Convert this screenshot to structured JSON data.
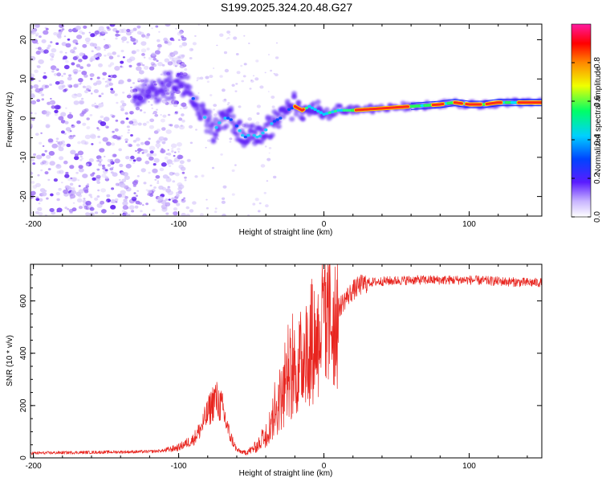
{
  "figure": {
    "title": "S199.2025.324.20.48.G27"
  },
  "chart_data": [
    {
      "type": "heatmap",
      "name": "spectrogram",
      "xlabel": "Height of straight line (km)",
      "ylabel": "Frequency (Hz)",
      "xlim": [
        -202,
        150
      ],
      "ylim": [
        -25,
        24
      ],
      "xticks": [
        -200,
        -100,
        0,
        100
      ],
      "yticks": [
        -20,
        -10,
        0,
        10,
        20
      ],
      "colorbar": {
        "label": "Normalized spectral amplitude",
        "range": [
          0,
          1
        ],
        "ticks": [
          "0.0",
          "0.2",
          "0.4",
          "0.6",
          "0.8"
        ]
      },
      "ridge": {
        "x": [
          -130,
          -110,
          -100,
          -95,
          -90,
          -85,
          -80,
          -75,
          -70,
          -65,
          -60,
          -55,
          -50,
          -45,
          -40,
          -35,
          -30,
          -25,
          -20,
          -15,
          -10,
          -5,
          0,
          10,
          20,
          40,
          60,
          80,
          90,
          100,
          110,
          120,
          130,
          140,
          150
        ],
        "y": [
          5,
          8,
          9,
          8,
          5,
          2,
          -1,
          -3,
          0,
          0,
          -2,
          -5,
          -4,
          -5,
          -3,
          -1,
          0,
          2,
          3,
          2,
          3,
          2,
          1,
          2,
          2,
          2.5,
          3,
          3.5,
          4,
          3.5,
          3.5,
          4,
          4,
          4,
          4
        ]
      }
    },
    {
      "type": "line",
      "name": "snr",
      "xlabel": "Height of straight line (km)",
      "ylabel": "SNR (10 * v/v)",
      "xlim": [
        -202,
        150
      ],
      "ylim": [
        0,
        740
      ],
      "xticks": [
        -200,
        -100,
        0,
        100
      ],
      "yticks": [
        0,
        200,
        400,
        600
      ],
      "color": "#e8241e",
      "envelope": {
        "x": [
          -202,
          -180,
          -150,
          -120,
          -110,
          -100,
          -90,
          -85,
          -80,
          -75,
          -70,
          -65,
          -60,
          -55,
          -50,
          -45,
          -40,
          -35,
          -30,
          -25,
          -20,
          -15,
          -10,
          -5,
          0,
          5,
          10,
          15,
          20,
          25,
          30,
          40,
          60,
          80,
          100,
          120,
          140,
          150
        ],
        "y": [
          18,
          20,
          22,
          24,
          28,
          40,
          70,
          110,
          170,
          230,
          190,
          90,
          30,
          20,
          30,
          50,
          90,
          150,
          220,
          270,
          320,
          380,
          420,
          470,
          500,
          530,
          570,
          610,
          640,
          660,
          670,
          675,
          680,
          680,
          680,
          675,
          670,
          670
        ]
      }
    }
  ]
}
